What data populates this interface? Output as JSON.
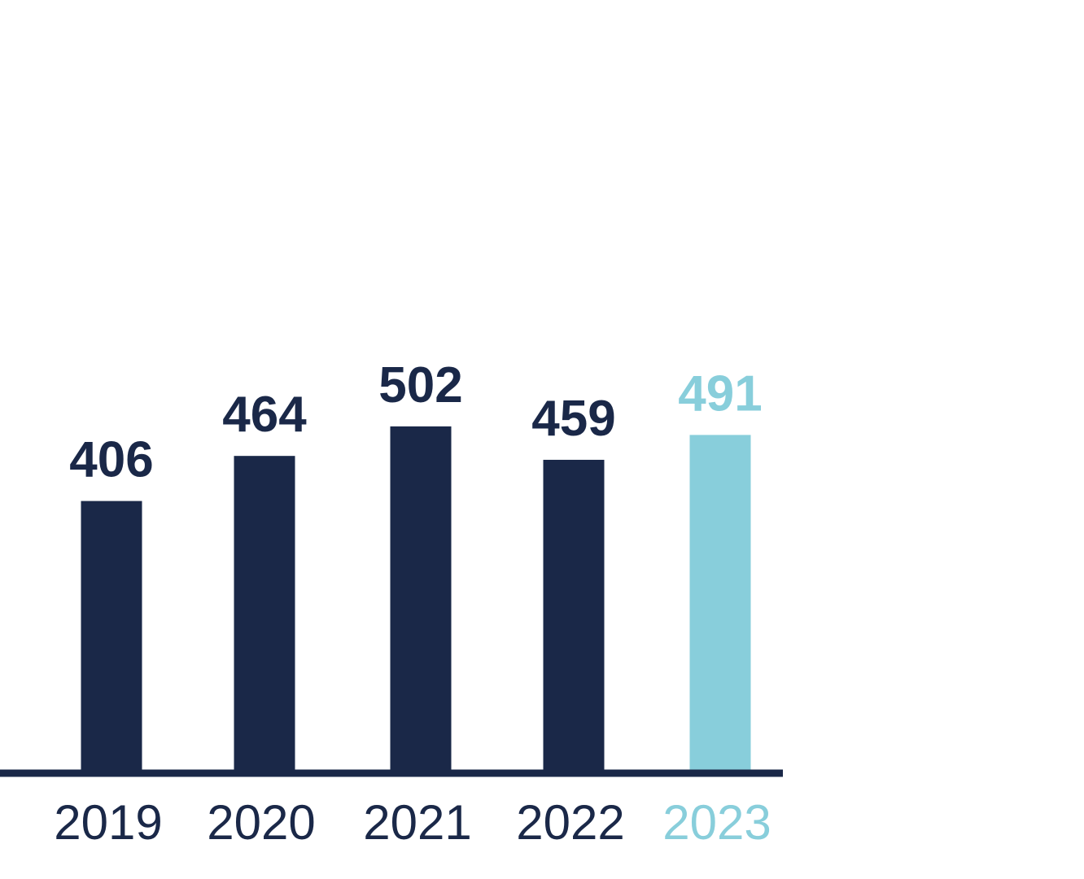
{
  "chart_data": {
    "type": "bar",
    "title": "",
    "xlabel": "",
    "ylabel": "",
    "categories": [
      "2019",
      "2020",
      "2021",
      "2022",
      "2023"
    ],
    "values": [
      406,
      464,
      502,
      459,
      491
    ],
    "data_labels": [
      "406",
      "464",
      "502",
      "459",
      "491"
    ],
    "highlight_index": 4,
    "grid": false,
    "legend": "none",
    "colors": {
      "bar": "#1a2848",
      "highlight": "#88cedb",
      "axis": "#1a2848",
      "text": "#1a2848"
    }
  }
}
